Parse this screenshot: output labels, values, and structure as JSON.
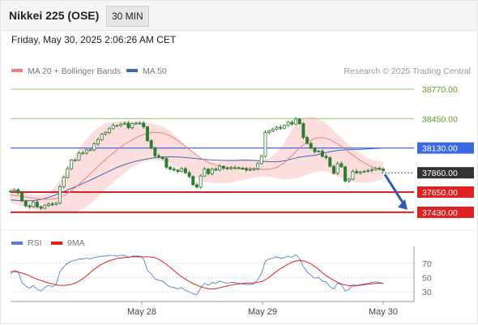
{
  "header": {
    "title": "Nikkei 225 (OSE)",
    "interval": "30 MIN",
    "datetime": "Friday, May 30, 2025 2:06:26 AM CET"
  },
  "legend": {
    "ma20_label": "MA 20 + Bollinger Bands",
    "ma20_color": "#f08080",
    "ma50_label": "MA 50",
    "ma50_color": "#3b6ab3",
    "rsi_label": "RSI",
    "rsi_color": "#5b7fd0",
    "ma9_label": "9MA",
    "ma9_color": "#e02020"
  },
  "copyright": "Research © 2025 Trading Central",
  "colors": {
    "target_line": "#9ccc65",
    "target_label": "#5a9e1a",
    "pivot": "#3b6ae0",
    "support": "#e02020",
    "last": "#333333",
    "candle": "#2e7d32",
    "band_fill": "#fbd3d3",
    "arrow": "#2a5db0"
  },
  "chart_data": [
    {
      "type": "candlestick",
      "x_ticks": [
        "May 28",
        "May 29",
        "May 30"
      ],
      "price_levels": [
        {
          "value": 38770.0,
          "label": "38770.00",
          "kind": "target"
        },
        {
          "value": 38450.0,
          "label": "38450.00",
          "kind": "target"
        },
        {
          "value": 38130.0,
          "label": "38130.00",
          "kind": "pivot"
        },
        {
          "value": 37860.0,
          "label": "37860.00",
          "kind": "last"
        },
        {
          "value": 37650.0,
          "label": "37650.00",
          "kind": "support"
        },
        {
          "value": 37430.0,
          "label": "37430.00",
          "kind": "support"
        }
      ],
      "ylim": [
        37350,
        38850
      ],
      "close": [
        37660,
        37675,
        37640,
        37555,
        37500,
        37490,
        37540,
        37490,
        37475,
        37505,
        37520,
        37515,
        37530,
        37710,
        37810,
        37905,
        38000,
        38000,
        38075,
        38075,
        38110,
        38110,
        38175,
        38220,
        38280,
        38300,
        38340,
        38375,
        38375,
        38390,
        38400,
        38350,
        38395,
        38400,
        38400,
        38360,
        38210,
        38130,
        38045,
        38030,
        38015,
        37920,
        37900,
        37890,
        37875,
        37905,
        37860,
        37820,
        37730,
        37705,
        37825,
        37900,
        37850,
        37900,
        37890,
        37930,
        37910,
        37905,
        37915,
        37915,
        37910,
        37905,
        37890,
        37895,
        37905,
        37960,
        38040,
        38300,
        38315,
        38335,
        38355,
        38345,
        38375,
        38410,
        38390,
        38445,
        38395,
        38245,
        38180,
        38130,
        38090,
        38095,
        38040,
        38025,
        37930,
        37855,
        37960,
        37925,
        37770,
        37790,
        37875,
        37860,
        37870,
        37875,
        37885,
        37895,
        37910,
        37900,
        37885
      ],
      "ma20": [
        37620,
        37608,
        37596,
        37584,
        37574,
        37570,
        37580,
        37612,
        37665,
        37735,
        37810,
        37890,
        37968,
        38040,
        38110,
        38170,
        38222,
        38262,
        38290,
        38300,
        38292,
        38262,
        38210,
        38148,
        38082,
        38020,
        37974,
        37944,
        37928,
        37918,
        37912,
        37908,
        37903,
        37898,
        37898,
        37918,
        37968,
        38046,
        38130,
        38198,
        38236,
        38244,
        38222,
        38176,
        38116,
        38052,
        37992,
        37944,
        37912,
        37890
      ],
      "ma50": [
        37565,
        37558,
        37554,
        37557,
        37570,
        37592,
        37622,
        37656,
        37690,
        37726,
        37762,
        37800,
        37840,
        37880,
        37918,
        37950,
        37975,
        37996,
        38012,
        38024,
        38032,
        38035,
        38032,
        38026,
        38018,
        38010,
        38002,
        37998,
        37995,
        37994,
        37997,
        37998,
        37994,
        37986,
        37980,
        37980,
        37990,
        38010,
        38030,
        38042,
        38050,
        38070,
        38090,
        38102,
        38110,
        38114,
        38116,
        38120,
        38126,
        38130
      ],
      "bb_upper": [
        37700,
        37670,
        37640,
        37620,
        37615,
        37640,
        37720,
        37850,
        37990,
        38120,
        38230,
        38320,
        38380,
        38410,
        38420,
        38425,
        38425,
        38420,
        38410,
        38390,
        38360,
        38310,
        38240,
        38160,
        38080,
        38020,
        37990,
        37980,
        37990,
        38000,
        38005,
        38010,
        38005,
        38000,
        38020,
        38080,
        38190,
        38330,
        38430,
        38475,
        38470,
        38430,
        38360,
        38280,
        38200,
        38130,
        38070,
        38020,
        37990,
        37980
      ],
      "bb_lower": [
        37530,
        37510,
        37480,
        37460,
        37445,
        37440,
        37430,
        37420,
        37425,
        37450,
        37490,
        37560,
        37640,
        37720,
        37790,
        37860,
        37920,
        37960,
        37990,
        38000,
        37990,
        37960,
        37920,
        37870,
        37820,
        37780,
        37755,
        37745,
        37745,
        37755,
        37770,
        37790,
        37810,
        37820,
        37815,
        37800,
        37790,
        37790,
        37810,
        37840,
        37870,
        37880,
        37860,
        37820,
        37780,
        37760,
        37750,
        37755,
        37770,
        37790
      ]
    },
    {
      "type": "line",
      "name": "RSI",
      "ylim": [
        22,
        80
      ],
      "y_ticks": [
        70,
        50,
        30
      ],
      "x_ticks": [
        "May 28",
        "May 29",
        "May 30"
      ],
      "rsi": [
        55,
        60,
        58,
        43,
        38,
        35,
        39,
        33,
        31,
        36,
        39,
        37,
        40,
        58,
        65,
        70,
        73,
        74,
        76,
        76,
        77,
        76,
        78,
        79,
        80,
        80,
        81,
        81,
        80,
        81,
        81,
        78,
        80,
        80,
        80,
        76,
        60,
        55,
        48,
        46,
        45,
        40,
        37,
        36,
        34,
        36,
        32,
        30,
        27,
        26,
        35,
        42,
        39,
        43,
        42,
        45,
        43,
        42,
        43,
        43,
        42,
        41,
        40,
        40,
        41,
        47,
        56,
        73,
        76,
        77,
        79,
        77,
        78,
        80,
        78,
        82,
        77,
        65,
        58,
        53,
        49,
        50,
        45,
        44,
        37,
        34,
        42,
        40,
        31,
        33,
        40,
        39,
        40,
        41,
        42,
        43,
        44,
        43,
        41
      ],
      "ma9": [
        58,
        58,
        56,
        53,
        49,
        46,
        43,
        41,
        39,
        39,
        40,
        43,
        48,
        55,
        62,
        68,
        72,
        75,
        77,
        78,
        79,
        79,
        79,
        79,
        78,
        74,
        68,
        61,
        54,
        48,
        43,
        39,
        36,
        34,
        34,
        36,
        38,
        40,
        41,
        42,
        42,
        43,
        45,
        50,
        57,
        63,
        68,
        72,
        74,
        73,
        69,
        63,
        56,
        50,
        45,
        41,
        39,
        38,
        39,
        40,
        41,
        42,
        42
      ]
    }
  ]
}
